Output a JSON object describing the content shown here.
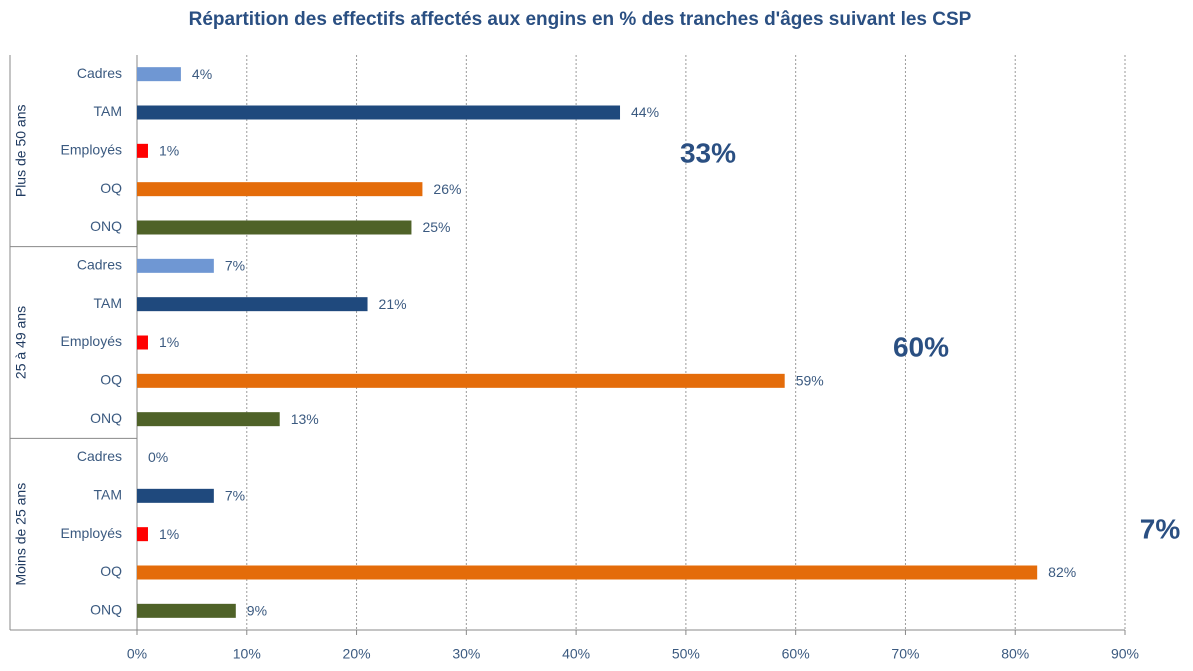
{
  "chart_data": {
    "type": "bar",
    "orientation": "horizontal",
    "title": "Répartition des effectifs affectés aux engins en % des tranches d'âges suivant les CSP",
    "colors": [
      "#6f97d3",
      "#1f497d",
      "#ff0000",
      "#e46c0a",
      "#4f6228"
    ],
    "groups": [
      {
        "name": "Plus de 50 ans",
        "annotation": "33%",
        "categories": [
          "Cadres",
          "TAM",
          "Employés",
          "OQ",
          "ONQ"
        ],
        "values": [
          4,
          44,
          1,
          26,
          25
        ],
        "value_labels": [
          "4%",
          "44%",
          "1%",
          "26%",
          "25%"
        ]
      },
      {
        "name": "25 à 49 ans",
        "annotation": "60%",
        "categories": [
          "Cadres",
          "TAM",
          "Employés",
          "OQ",
          "ONQ"
        ],
        "values": [
          7,
          21,
          1,
          59,
          13
        ],
        "value_labels": [
          "7%",
          "21%",
          "1%",
          "59%",
          "13%"
        ]
      },
      {
        "name": "Moins de 25 ans",
        "annotation": "7%",
        "categories": [
          "Cadres",
          "TAM",
          "Employés",
          "OQ",
          "ONQ"
        ],
        "values": [
          0,
          7,
          1,
          82,
          9
        ],
        "value_labels": [
          "0%",
          "7%",
          "1%",
          "82%",
          "9%"
        ]
      }
    ],
    "xlim": [
      0,
      90
    ],
    "xticks": [
      {
        "value": 0,
        "label": "0%"
      },
      {
        "value": 10,
        "label": "10%"
      },
      {
        "value": 20,
        "label": "20%"
      },
      {
        "value": 30,
        "label": "30%"
      },
      {
        "value": 40,
        "label": "40%"
      },
      {
        "value": 50,
        "label": "50%"
      },
      {
        "value": 60,
        "label": "60%"
      },
      {
        "value": 70,
        "label": "70%"
      },
      {
        "value": 80,
        "label": "80%"
      },
      {
        "value": 90,
        "label": "90%"
      }
    ],
    "grid": true
  }
}
